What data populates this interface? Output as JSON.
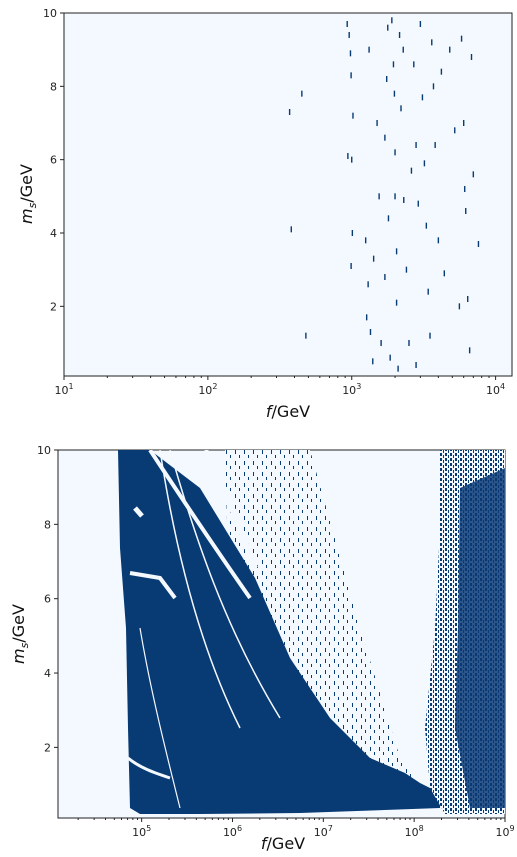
{
  "chart_data": [
    {
      "type": "heatmap",
      "xscale": "log",
      "xlim": [
        10,
        13000
      ],
      "ylim": [
        0.1,
        10
      ],
      "xlabel_base": "f",
      "xlabel_unit": "/GeV",
      "ylabel_base": "m",
      "ylabel_sub": "s",
      "ylabel_unit": "/GeV",
      "x_tick_bases": [
        "10",
        "10",
        "10",
        "10"
      ],
      "x_tick_exps": [
        "1",
        "2",
        "3",
        "4"
      ],
      "x_tick_values": [
        10,
        100,
        1000,
        10000
      ],
      "y_ticks": [
        2,
        4,
        6,
        8,
        10
      ],
      "y_tick_labels": [
        "2",
        "4",
        "6",
        "8",
        "10"
      ],
      "colors": {
        "background": "#f4f9ff",
        "filled": "#083a74"
      },
      "points": [
        [
          930,
          9.7
        ],
        [
          960,
          9.4
        ],
        [
          980,
          8.9
        ],
        [
          990,
          8.3
        ],
        [
          1020,
          7.2
        ],
        [
          940,
          6.1
        ],
        [
          1000,
          6.0
        ],
        [
          1010,
          4.0
        ],
        [
          990,
          3.1
        ],
        [
          1300,
          2.6
        ],
        [
          1350,
          1.3
        ],
        [
          1400,
          0.5
        ],
        [
          1420,
          3.3
        ],
        [
          1500,
          7.0
        ],
        [
          1550,
          5.0
        ],
        [
          1600,
          1.0
        ],
        [
          1700,
          6.6
        ],
        [
          1750,
          8.2
        ],
        [
          1800,
          4.4
        ],
        [
          1850,
          0.6
        ],
        [
          1900,
          9.8
        ],
        [
          1950,
          8.6
        ],
        [
          1980,
          7.8
        ],
        [
          2000,
          6.2
        ],
        [
          2000,
          5.0
        ],
        [
          2050,
          3.5
        ],
        [
          2050,
          2.1
        ],
        [
          2100,
          0.3
        ],
        [
          2150,
          9.4
        ],
        [
          2200,
          7.4
        ],
        [
          2300,
          4.9
        ],
        [
          2400,
          3.0
        ],
        [
          2500,
          1.0
        ],
        [
          2700,
          8.6
        ],
        [
          2800,
          6.4
        ],
        [
          2900,
          4.8
        ],
        [
          3000,
          9.7
        ],
        [
          3100,
          7.7
        ],
        [
          3200,
          5.9
        ],
        [
          3300,
          4.2
        ],
        [
          3400,
          2.4
        ],
        [
          3500,
          1.2
        ],
        [
          3600,
          9.2
        ],
        [
          3800,
          6.4
        ],
        [
          4000,
          3.8
        ],
        [
          4200,
          8.4
        ],
        [
          4400,
          2.9
        ],
        [
          5800,
          9.3
        ],
        [
          6000,
          7.0
        ],
        [
          6200,
          4.6
        ],
        [
          6400,
          2.2
        ],
        [
          6600,
          0.8
        ],
        [
          6800,
          8.8
        ],
        [
          7000,
          5.6
        ],
        [
          7600,
          3.7
        ],
        [
          370,
          7.3
        ],
        [
          380,
          4.1
        ],
        [
          450,
          7.8
        ],
        [
          480,
          1.2
        ],
        [
          1250,
          3.8
        ],
        [
          1270,
          1.7
        ],
        [
          1320,
          9.0
        ],
        [
          1700,
          2.8
        ],
        [
          1780,
          9.6
        ],
        [
          2280,
          9.0
        ],
        [
          2600,
          5.7
        ],
        [
          3700,
          8.0
        ],
        [
          4800,
          9.0
        ],
        [
          5200,
          6.8
        ],
        [
          5600,
          2.0
        ],
        [
          6100,
          5.2
        ],
        [
          2800,
          0.4
        ]
      ]
    },
    {
      "type": "heatmap",
      "xscale": "log",
      "xlim": [
        12000,
        1000000000
      ],
      "ylim": [
        0.1,
        10
      ],
      "xlabel_base": "f",
      "xlabel_unit": "/GeV",
      "ylabel_base": "m",
      "ylabel_sub": "s",
      "ylabel_unit": "/GeV",
      "x_tick_bases": [
        "10",
        "10",
        "10",
        "10",
        "10"
      ],
      "x_tick_exps": [
        "5",
        "6",
        "7",
        "8",
        "9"
      ],
      "x_tick_values": [
        100000,
        1000000,
        10000000,
        100000000,
        1000000000
      ],
      "y_ticks": [
        2,
        4,
        6,
        8,
        10
      ],
      "y_tick_labels": [
        "2",
        "4",
        "6",
        "8",
        "10"
      ],
      "colors": {
        "background": "#f4f9ff",
        "filled": "#083a74"
      }
    }
  ]
}
